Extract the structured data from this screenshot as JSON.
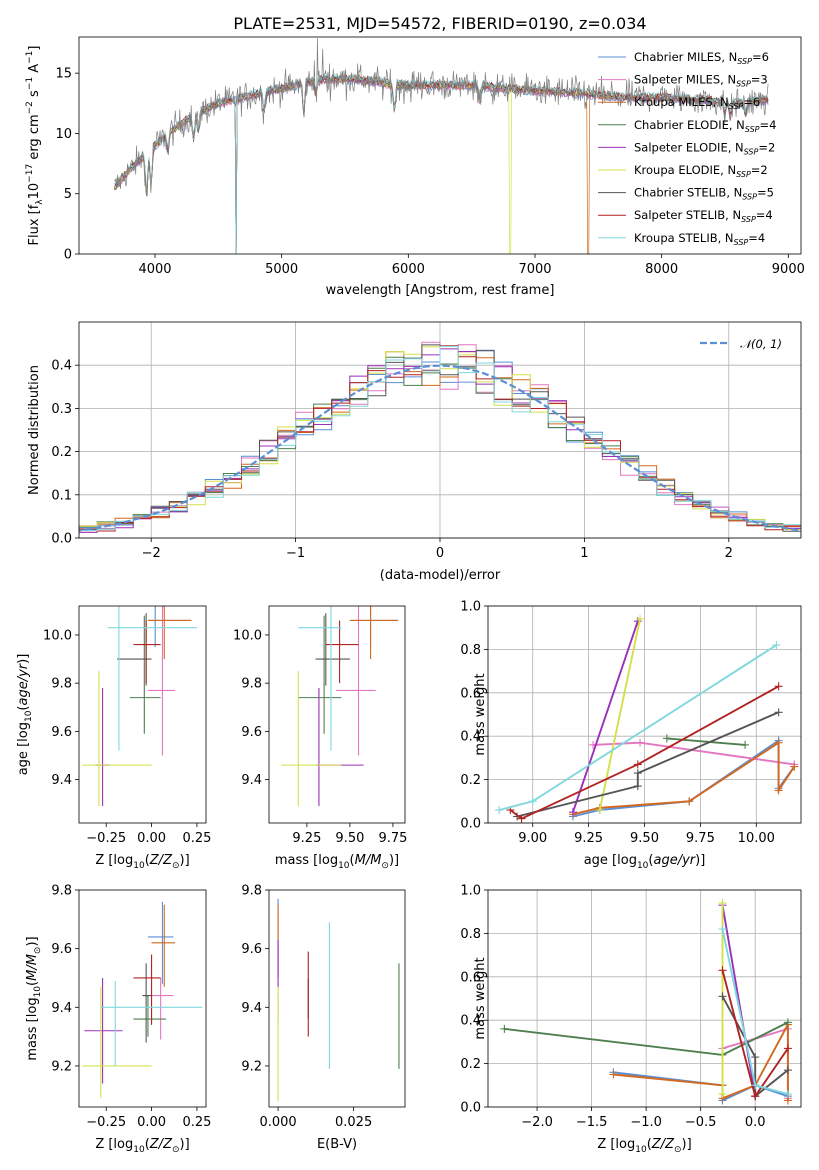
{
  "title": "PLATE=2531, MJD=54572, FIBERID=0190, z=0.034",
  "series": [
    {
      "name": "Chabrier MILES, N$_{SSP}$=6",
      "label_main": "Chabrier MILES, N",
      "label_sub": "SSP",
      "label_tail": "=6",
      "color": "#5b8fd6"
    },
    {
      "name": "Salpeter MILES, N$_{SSP}$=3",
      "label_main": "Salpeter MILES, N",
      "label_sub": "SSP",
      "label_tail": "=3",
      "color": "#e377c2"
    },
    {
      "name": "Kroupa MILES, N$_{SSP}$=6",
      "label_main": "Kroupa MILES, N",
      "label_sub": "SSP",
      "label_tail": "=6",
      "color": "#d2691e"
    },
    {
      "name": "Chabrier ELODIE, N$_{SSP}$=4",
      "label_main": "Chabrier ELODIE, N",
      "label_sub": "SSP",
      "label_tail": "=4",
      "color": "#4f7f4f"
    },
    {
      "name": "Salpeter ELODIE, N$_{SSP}$=2",
      "label_main": "Salpeter ELODIE, N",
      "label_sub": "SSP",
      "label_tail": "=2",
      "color": "#9b30b8"
    },
    {
      "name": "Kroupa ELODIE, N$_{SSP}$=2",
      "label_main": "Kroupa ELODIE, N",
      "label_sub": "SSP",
      "label_tail": "=2",
      "color": "#d4e04a"
    },
    {
      "name": "Chabrier STELIB, N$_{SSP}$=5",
      "label_main": "Chabrier STELIB, N",
      "label_sub": "SSP",
      "label_tail": "=5",
      "color": "#555555"
    },
    {
      "name": "Salpeter STELIB, N$_{SSP}$=4",
      "label_main": "Salpeter STELIB, N",
      "label_sub": "SSP",
      "label_tail": "=4",
      "color": "#b22222"
    },
    {
      "name": "Kroupa STELIB, N$_{SSP}$=4",
      "label_main": "Kroupa STELIB, N",
      "label_sub": "SSP",
      "label_tail": "=4",
      "color": "#7fd8de"
    }
  ],
  "chart_data": [
    {
      "id": "spectrum",
      "type": "line",
      "title": "PLATE=2531, MJD=54572, FIBERID=0190, z=0.034",
      "xlabel": "wavelength [Angstrom, rest frame]",
      "ylabel": "Flux [f_λ 10^-17 erg cm^-2 s^-1 A^-1]",
      "xlim": [
        3400,
        9100
      ],
      "ylim": [
        0,
        18
      ],
      "xticks": [
        4000,
        5000,
        6000,
        7000,
        8000,
        9000
      ],
      "yticks": [
        0,
        5,
        10,
        15
      ],
      "legend_position": "top-right",
      "data_continuum": [
        [
          3680,
          5.5
        ],
        [
          3800,
          7.0
        ],
        [
          3950,
          8.5
        ],
        [
          4100,
          10.0
        ],
        [
          4300,
          11.5
        ],
        [
          4500,
          12.5
        ],
        [
          4700,
          13.0
        ],
        [
          4900,
          13.5
        ],
        [
          5100,
          14.0
        ],
        [
          5300,
          14.5
        ],
        [
          5600,
          14.5
        ],
        [
          5900,
          14.0
        ],
        [
          6200,
          14.0
        ],
        [
          6500,
          14.0
        ],
        [
          6800,
          13.7
        ],
        [
          7100,
          13.5
        ],
        [
          7400,
          13.3
        ],
        [
          7700,
          13.0
        ],
        [
          8000,
          13.0
        ],
        [
          8300,
          12.8
        ],
        [
          8600,
          12.5
        ],
        [
          8840,
          12.8
        ]
      ]
    },
    {
      "id": "residuals",
      "type": "histogram",
      "xlabel": "(data-model)/error",
      "ylabel": "Normed distribution",
      "xlim": [
        -2.5,
        2.5
      ],
      "ylim": [
        0,
        0.5
      ],
      "xticks": [
        -2,
        -1,
        0,
        1,
        2
      ],
      "yticks": [
        0.0,
        0.1,
        0.2,
        0.3,
        0.4
      ],
      "reference_curve": "N(0,1)",
      "reference_label": "𝒩(0, 1)",
      "legend_position": "top-right"
    },
    {
      "id": "age-vs-Z",
      "type": "errorbar",
      "xlabel": "Z [log10(Z/Z⊙)]",
      "ylabel": "age [log10(age/yr)]",
      "xlim": [
        -0.4,
        0.3
      ],
      "ylim": [
        9.22,
        10.12
      ],
      "xticks": [
        -0.25,
        0.0,
        0.25
      ],
      "yticks": [
        9.4,
        9.6,
        9.8,
        10.0
      ],
      "points": [
        {
          "s": 0,
          "x": 0.02,
          "y": 10.06,
          "xlo": -0.02,
          "xhi": 0.22,
          "ylo": 9.95,
          "yhi": 10.12
        },
        {
          "s": 1,
          "x": 0.06,
          "y": 9.77,
          "xlo": -0.02,
          "xhi": 0.13,
          "ylo": 9.5,
          "yhi": 10.12
        },
        {
          "s": 2,
          "x": 0.07,
          "y": 10.06,
          "xlo": -0.02,
          "xhi": 0.22,
          "ylo": 9.9,
          "yhi": 10.12
        },
        {
          "s": 3,
          "x": -0.04,
          "y": 9.74,
          "xlo": -0.12,
          "xhi": 0.05,
          "ylo": 9.59,
          "yhi": 10.08
        },
        {
          "s": 4,
          "x": -0.27,
          "y": 9.46,
          "xlo": -0.31,
          "xhi": -0.23,
          "ylo": 9.29,
          "yhi": 9.78
        },
        {
          "s": 5,
          "x": -0.29,
          "y": 9.46,
          "xlo": -0.38,
          "xhi": 0.0,
          "ylo": 9.29,
          "yhi": 9.85
        },
        {
          "s": 6,
          "x": -0.03,
          "y": 9.9,
          "xlo": -0.19,
          "xhi": 0.0,
          "ylo": 9.79,
          "yhi": 10.09
        },
        {
          "s": 7,
          "x": -0.03,
          "y": 9.96,
          "xlo": -0.1,
          "xhi": 0.05,
          "ylo": 9.8,
          "yhi": 10.06
        },
        {
          "s": 8,
          "x": -0.18,
          "y": 10.03,
          "xlo": -0.24,
          "xhi": 0.25,
          "ylo": 9.52,
          "yhi": 10.12
        }
      ]
    },
    {
      "id": "age-vs-mass",
      "type": "errorbar",
      "xlabel": "mass [log10(M/M⊙)]",
      "ylabel": "",
      "xlim": [
        9.03,
        9.82
      ],
      "ylim": [
        9.22,
        10.12
      ],
      "xticks": [
        9.25,
        9.5,
        9.75
      ],
      "yticks": [
        9.4,
        9.6,
        9.8,
        10.0
      ],
      "points": [
        {
          "s": 0,
          "x": 9.62,
          "y": 10.06,
          "xlo": 9.5,
          "xhi": 9.78,
          "ylo": 9.95,
          "yhi": 10.12
        },
        {
          "s": 1,
          "x": 9.55,
          "y": 9.77,
          "xlo": 9.42,
          "xhi": 9.65,
          "ylo": 9.5,
          "yhi": 10.12
        },
        {
          "s": 2,
          "x": 9.62,
          "y": 10.06,
          "xlo": 9.5,
          "xhi": 9.78,
          "ylo": 9.9,
          "yhi": 10.12
        },
        {
          "s": 3,
          "x": 9.35,
          "y": 9.74,
          "xlo": 9.2,
          "xhi": 9.45,
          "ylo": 9.59,
          "yhi": 10.08
        },
        {
          "s": 4,
          "x": 9.32,
          "y": 9.46,
          "xlo": 9.3,
          "xhi": 9.58,
          "ylo": 9.29,
          "yhi": 9.78
        },
        {
          "s": 5,
          "x": 9.2,
          "y": 9.46,
          "xlo": 9.1,
          "xhi": 9.45,
          "ylo": 9.29,
          "yhi": 9.85
        },
        {
          "s": 6,
          "x": 9.36,
          "y": 9.9,
          "xlo": 9.3,
          "xhi": 9.5,
          "ylo": 9.79,
          "yhi": 10.09
        },
        {
          "s": 7,
          "x": 9.44,
          "y": 9.96,
          "xlo": 9.36,
          "xhi": 9.55,
          "ylo": 9.8,
          "yhi": 10.06
        },
        {
          "s": 8,
          "x": 9.39,
          "y": 10.03,
          "xlo": 9.2,
          "xhi": 9.45,
          "ylo": 9.52,
          "yhi": 10.12
        }
      ]
    },
    {
      "id": "weight-vs-age",
      "type": "line",
      "xlabel": "age [log10(age/yr)]",
      "ylabel": "mass weight",
      "xlim": [
        8.8,
        10.2
      ],
      "ylim": [
        0,
        1
      ],
      "xticks": [
        9.0,
        9.25,
        9.5,
        9.75,
        10.0
      ],
      "yticks": [
        0.0,
        0.2,
        0.4,
        0.6,
        0.8,
        1.0
      ],
      "grid": true,
      "series_points": [
        {
          "s": 0,
          "points": [
            [
              9.18,
              0.03
            ],
            [
              9.3,
              0.06
            ],
            [
              9.7,
              0.1
            ],
            [
              10.1,
              0.38
            ],
            [
              10.1,
              0.16
            ],
            [
              10.17,
              0.26
            ]
          ]
        },
        {
          "s": 1,
          "points": [
            [
              9.27,
              0.36
            ],
            [
              9.48,
              0.37
            ],
            [
              10.17,
              0.27
            ]
          ]
        },
        {
          "s": 2,
          "points": [
            [
              9.18,
              0.04
            ],
            [
              9.3,
              0.07
            ],
            [
              9.7,
              0.1
            ],
            [
              10.1,
              0.37
            ],
            [
              10.1,
              0.15
            ],
            [
              10.17,
              0.26
            ]
          ]
        },
        {
          "s": 3,
          "points": [
            [
              9.6,
              0.39
            ],
            [
              9.95,
              0.36
            ]
          ]
        },
        {
          "s": 4,
          "points": [
            [
              9.18,
              0.05
            ],
            [
              9.47,
              0.93
            ]
          ]
        },
        {
          "s": 5,
          "points": [
            [
              9.3,
              0.06
            ],
            [
              9.48,
              0.94
            ]
          ]
        },
        {
          "s": 6,
          "points": [
            [
              8.93,
              0.03
            ],
            [
              9.47,
              0.17
            ],
            [
              9.47,
              0.23
            ],
            [
              10.1,
              0.51
            ]
          ]
        },
        {
          "s": 7,
          "points": [
            [
              8.9,
              0.06
            ],
            [
              8.95,
              0.02
            ],
            [
              9.47,
              0.27
            ],
            [
              10.1,
              0.63
            ]
          ]
        },
        {
          "s": 8,
          "points": [
            [
              8.85,
              0.06
            ],
            [
              9.0,
              0.1
            ],
            [
              10.09,
              0.82
            ]
          ]
        }
      ]
    },
    {
      "id": "mass-vs-Z",
      "type": "errorbar",
      "xlabel": "Z [log10(Z/Z⊙)]",
      "ylabel": "mass [log10(M/M⊙)]",
      "xlim": [
        -0.4,
        0.3
      ],
      "ylim": [
        9.06,
        9.8
      ],
      "xticks": [
        -0.25,
        0.0,
        0.25
      ],
      "yticks": [
        9.2,
        9.4,
        9.6,
        9.8
      ],
      "points": [
        {
          "s": 0,
          "x": 0.06,
          "y": 9.64,
          "xlo": -0.02,
          "xhi": 0.12,
          "ylo": 9.48,
          "yhi": 9.76
        },
        {
          "s": 1,
          "x": 0.05,
          "y": 9.44,
          "xlo": -0.05,
          "xhi": 0.12,
          "ylo": 9.29,
          "yhi": 9.5
        },
        {
          "s": 2,
          "x": 0.07,
          "y": 9.62,
          "xlo": 0.0,
          "xhi": 0.13,
          "ylo": 9.47,
          "yhi": 9.75
        },
        {
          "s": 3,
          "x": -0.02,
          "y": 9.36,
          "xlo": -0.1,
          "xhi": 0.08,
          "ylo": 9.3,
          "yhi": 9.44
        },
        {
          "s": 4,
          "x": -0.27,
          "y": 9.32,
          "xlo": -0.37,
          "xhi": -0.16,
          "ylo": 9.14,
          "yhi": 9.5
        },
        {
          "s": 5,
          "x": -0.28,
          "y": 9.2,
          "xlo": -0.38,
          "xhi": 0.0,
          "ylo": 9.09,
          "yhi": 9.47
        },
        {
          "s": 6,
          "x": -0.03,
          "y": 9.44,
          "xlo": -0.05,
          "xhi": 0.0,
          "ylo": 9.28,
          "yhi": 9.55
        },
        {
          "s": 7,
          "x": 0.0,
          "y": 9.5,
          "xlo": -0.1,
          "xhi": 0.05,
          "ylo": 9.34,
          "yhi": 9.58
        },
        {
          "s": 8,
          "x": -0.2,
          "y": 9.4,
          "xlo": -0.28,
          "xhi": 0.28,
          "ylo": 9.2,
          "yhi": 9.49
        }
      ]
    },
    {
      "id": "mass-vs-ebv",
      "type": "errorbar",
      "xlabel": "E(B-V)",
      "ylabel": "",
      "xlim": [
        -0.003,
        0.042
      ],
      "ylim": [
        9.06,
        9.8
      ],
      "xticks": [
        0.0,
        0.025
      ],
      "yticks": [
        9.2,
        9.4,
        9.6,
        9.8
      ],
      "points": [
        {
          "s": 0,
          "x": 0.0,
          "y": 9.64,
          "xlo": 0.0,
          "xhi": 0.0,
          "ylo": 9.5,
          "yhi": 9.77
        },
        {
          "s": 1,
          "x": 0.0,
          "y": 9.4,
          "xlo": 0.0,
          "xhi": 0.0,
          "ylo": 9.35,
          "yhi": 9.45
        },
        {
          "s": 2,
          "x": 0.0,
          "y": 9.62,
          "xlo": 0.0,
          "xhi": 0.0,
          "ylo": 9.5,
          "yhi": 9.75
        },
        {
          "s": 3,
          "x": 0.04,
          "y": 9.36,
          "xlo": 0.04,
          "xhi": 0.04,
          "ylo": 9.19,
          "yhi": 9.55
        },
        {
          "s": 4,
          "x": 0.0,
          "y": 9.55,
          "xlo": 0.0,
          "xhi": 0.0,
          "ylo": 9.46,
          "yhi": 9.63
        },
        {
          "s": 5,
          "x": 0.0,
          "y": 9.2,
          "xlo": 0.0,
          "xhi": 0.0,
          "ylo": 9.08,
          "yhi": 9.47
        },
        {
          "s": 6,
          "x": 0.01,
          "y": 9.45,
          "xlo": 0.01,
          "xhi": 0.01,
          "ylo": 9.36,
          "yhi": 9.5
        },
        {
          "s": 7,
          "x": 0.01,
          "y": 9.45,
          "xlo": 0.01,
          "xhi": 0.01,
          "ylo": 9.3,
          "yhi": 9.59
        },
        {
          "s": 8,
          "x": 0.017,
          "y": 9.45,
          "xlo": 0.017,
          "xhi": 0.017,
          "ylo": 9.19,
          "yhi": 9.69
        }
      ]
    },
    {
      "id": "weight-vs-Z",
      "type": "line",
      "xlabel": "Z [log10(Z/Z⊙)]",
      "ylabel": "mass weight",
      "xlim": [
        -2.45,
        0.42
      ],
      "ylim": [
        0,
        1
      ],
      "xticks": [
        -2.0,
        -1.5,
        -1.0,
        -0.5,
        0.0
      ],
      "yticks": [
        0.0,
        0.2,
        0.4,
        0.6,
        0.8,
        1.0
      ],
      "grid": true,
      "series_points": [
        {
          "s": 0,
          "points": [
            [
              -1.3,
              0.16
            ],
            [
              -0.3,
              0.1
            ],
            [
              -0.3,
              0.03
            ],
            [
              0.0,
              0.1
            ],
            [
              0.3,
              0.05
            ]
          ]
        },
        {
          "s": 1,
          "points": [
            [
              -0.3,
              0.27
            ],
            [
              0.3,
              0.36
            ],
            [
              0.3,
              0.04
            ]
          ]
        },
        {
          "s": 2,
          "points": [
            [
              -1.3,
              0.15
            ],
            [
              -0.3,
              0.1
            ],
            [
              -0.3,
              0.04
            ],
            [
              0.0,
              0.1
            ],
            [
              0.3,
              0.38
            ],
            [
              0.3,
              0.03
            ]
          ]
        },
        {
          "s": 3,
          "points": [
            [
              -2.3,
              0.36
            ],
            [
              -0.3,
              0.24
            ],
            [
              0.3,
              0.39
            ]
          ]
        },
        {
          "s": 4,
          "points": [
            [
              -0.3,
              0.93
            ],
            [
              0.0,
              0.05
            ]
          ]
        },
        {
          "s": 5,
          "points": [
            [
              -0.3,
              0.94
            ],
            [
              -0.3,
              0.06
            ]
          ]
        },
        {
          "s": 6,
          "points": [
            [
              -0.3,
              0.51
            ],
            [
              0.0,
              0.23
            ],
            [
              0.0,
              0.05
            ],
            [
              0.3,
              0.17
            ]
          ]
        },
        {
          "s": 7,
          "points": [
            [
              -0.3,
              0.63
            ],
            [
              0.0,
              0.05
            ],
            [
              0.3,
              0.27
            ]
          ]
        },
        {
          "s": 8,
          "points": [
            [
              -0.3,
              0.82
            ],
            [
              0.0,
              0.1
            ],
            [
              0.3,
              0.06
            ]
          ]
        }
      ]
    }
  ]
}
